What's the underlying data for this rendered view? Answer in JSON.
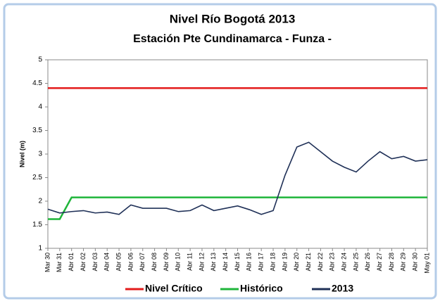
{
  "chart_data": {
    "type": "line",
    "title": "Nivel Río Bogotá 2013",
    "subtitle": "Estación Pte  Cundinamarca - Funza -",
    "y_label": "Nivel (m)",
    "categories": [
      "Mar 30",
      "Mar 31",
      "Abr 01",
      "Abr 02",
      "Abr 03",
      "Abr 04",
      "Abr 05",
      "Abr 06",
      "Abr 07",
      "Abr 08",
      "Abr 09",
      "Abr 10",
      "Abr 11",
      "Abr 12",
      "Abr 13",
      "Abr 14",
      "Abr 15",
      "Abr 16",
      "Abr 17",
      "Abr 18",
      "Abr 19",
      "Abr 20",
      "Abr 21",
      "Abr 22",
      "Abr 23",
      "Abr 24",
      "Abr 25",
      "Abr 26",
      "Abr 27",
      "Abr 28",
      "Abr 29",
      "Abr 30",
      "May 01"
    ],
    "series": [
      {
        "name": "Nivel Crítico",
        "color": "#e31b1b",
        "values": [
          4.4,
          4.4,
          4.4,
          4.4,
          4.4,
          4.4,
          4.4,
          4.4,
          4.4,
          4.4,
          4.4,
          4.4,
          4.4,
          4.4,
          4.4,
          4.4,
          4.4,
          4.4,
          4.4,
          4.4,
          4.4,
          4.4,
          4.4,
          4.4,
          4.4,
          4.4,
          4.4,
          4.4,
          4.4,
          4.4,
          4.4,
          4.4,
          4.4
        ]
      },
      {
        "name": "Histórico",
        "color": "#1fb53a",
        "values": [
          1.62,
          1.62,
          2.08,
          2.08,
          2.08,
          2.08,
          2.08,
          2.08,
          2.08,
          2.08,
          2.08,
          2.08,
          2.08,
          2.08,
          2.08,
          2.08,
          2.08,
          2.08,
          2.08,
          2.08,
          2.08,
          2.08,
          2.08,
          2.08,
          2.08,
          2.08,
          2.08,
          2.08,
          2.08,
          2.08,
          2.08,
          2.08,
          2.08
        ]
      },
      {
        "name": "2013",
        "color": "#1f3057",
        "values": [
          1.83,
          1.75,
          1.78,
          1.8,
          1.75,
          1.77,
          1.72,
          1.92,
          1.85,
          1.85,
          1.85,
          1.78,
          1.8,
          1.92,
          1.8,
          1.85,
          1.9,
          1.82,
          1.72,
          1.8,
          2.55,
          3.15,
          3.25,
          3.05,
          2.85,
          2.72,
          2.62,
          2.85,
          3.05,
          2.9,
          2.95,
          2.85,
          2.88
        ]
      }
    ],
    "ylim": [
      1,
      5
    ],
    "yticks": [
      1,
      1.5,
      2,
      2.5,
      3,
      3.5,
      4,
      4.5,
      5
    ],
    "grid": false,
    "legend": "bottom"
  }
}
